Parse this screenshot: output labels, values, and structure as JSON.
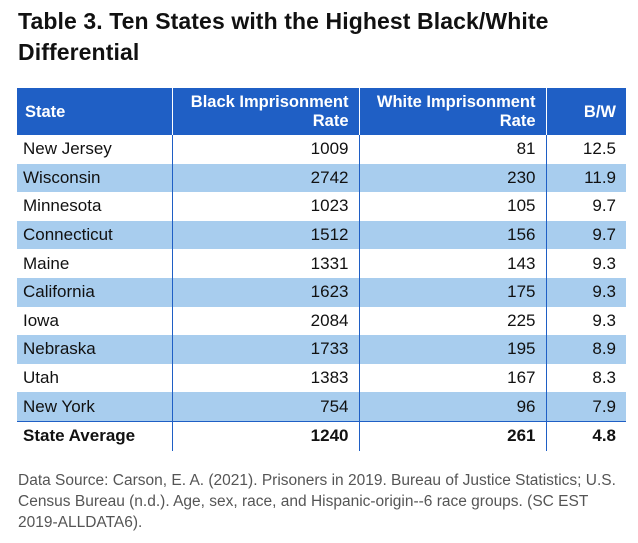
{
  "title": "Table 3. Ten States with the Highest Black/White Differential",
  "table": {
    "headers": {
      "state": "State",
      "black": "Black Imprisonment Rate",
      "white": "White Imprisonment Rate",
      "bw": "B/W"
    },
    "rows": [
      {
        "state": "New Jersey",
        "black": "1009",
        "white": "81",
        "bw": "12.5"
      },
      {
        "state": "Wisconsin",
        "black": "2742",
        "white": "230",
        "bw": "11.9"
      },
      {
        "state": "Minnesota",
        "black": "1023",
        "white": "105",
        "bw": "9.7"
      },
      {
        "state": "Connecticut",
        "black": "1512",
        "white": "156",
        "bw": "9.7"
      },
      {
        "state": "Maine",
        "black": "1331",
        "white": "143",
        "bw": "9.3"
      },
      {
        "state": "California",
        "black": "1623",
        "white": "175",
        "bw": "9.3"
      },
      {
        "state": "Iowa",
        "black": "2084",
        "white": "225",
        "bw": "9.3"
      },
      {
        "state": "Nebraska",
        "black": "1733",
        "white": "195",
        "bw": "8.9"
      },
      {
        "state": "Utah",
        "black": "1383",
        "white": "167",
        "bw": "8.3"
      },
      {
        "state": "New York",
        "black": "754",
        "white": "96",
        "bw": "7.9"
      }
    ],
    "average": {
      "state": "State Average",
      "black": "1240",
      "white": "261",
      "bw": "4.8"
    }
  },
  "source": "Data Source: Carson, E. A. (2021). Prisoners in 2019. Bureau of Justice Statistics; U.S. Census Bureau (n.d.). Age, sex, race, and Hispanic-origin--6 race groups. (SC EST 2019-ALLDATA6).",
  "colors": {
    "header_bg": "#1f5fc5",
    "row_shade": "#a8cdee",
    "text": "#111111",
    "source_text": "#555555"
  }
}
